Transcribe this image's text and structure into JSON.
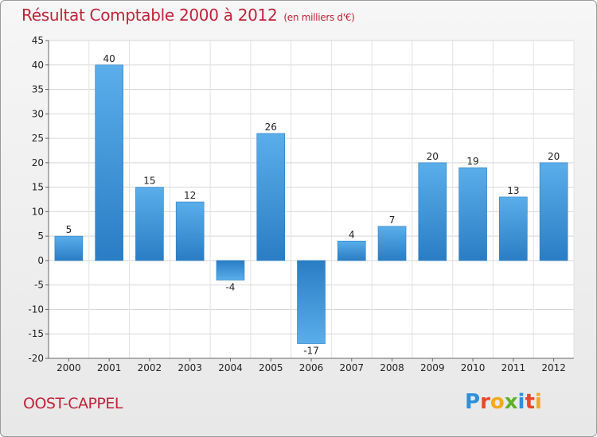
{
  "title": "Résultat Comptable 2000 à 2012",
  "subtitle": "(en milliers d'€)",
  "commune": "OOST-CAPPEL",
  "logo": {
    "letters": [
      "P",
      "r",
      "o",
      "x",
      "i",
      "t",
      "i"
    ],
    "colors": [
      "#2f8fd8",
      "#e8482a",
      "#f2a91c",
      "#5fb12b",
      "#2f8fd8",
      "#e8482a",
      "#f2a91c"
    ]
  },
  "colors": {
    "bar_light": "#5aaeea",
    "bar_dark": "#2a7dc4",
    "title": "#c0233a"
  },
  "chart_data": {
    "type": "bar",
    "title": "Résultat Comptable 2000 à 2012",
    "subtitle": "(en milliers d'€)",
    "categories": [
      "2000",
      "2001",
      "2002",
      "2003",
      "2004",
      "2005",
      "2006",
      "2007",
      "2008",
      "2009",
      "2010",
      "2011",
      "2012"
    ],
    "values": [
      5,
      40,
      15,
      12,
      -4,
      26,
      -17,
      4,
      7,
      20,
      19,
      13,
      20
    ],
    "data_labels": [
      "5",
      "40",
      "15",
      "12",
      "-4",
      "26",
      "-17",
      "4",
      "7",
      "20",
      "19",
      "13",
      "20"
    ],
    "ylim": [
      -20,
      45
    ],
    "yticks": [
      -20,
      -15,
      -10,
      -5,
      0,
      5,
      10,
      15,
      20,
      25,
      30,
      35,
      40,
      45
    ],
    "grid": true
  }
}
